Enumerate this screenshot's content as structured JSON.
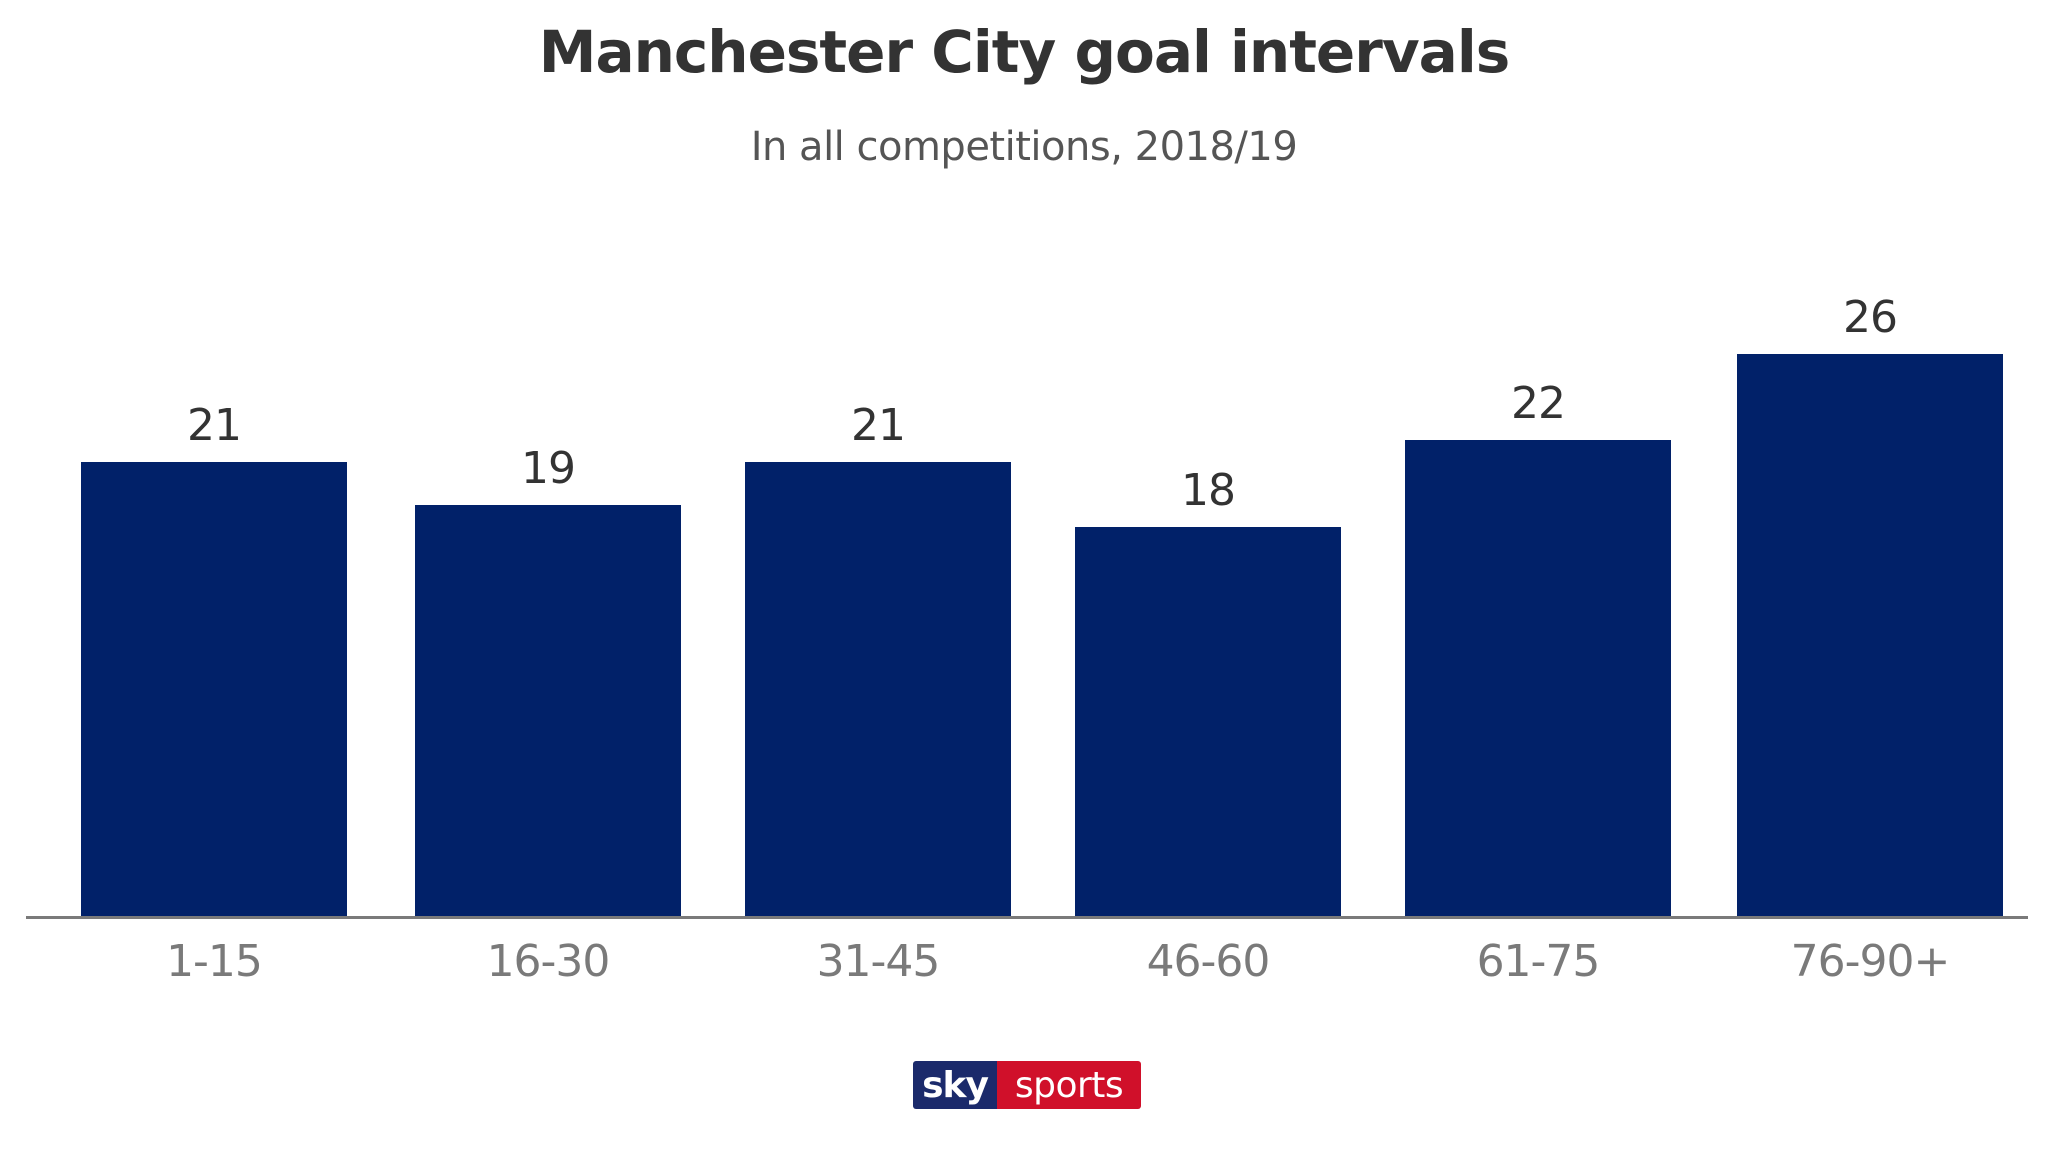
{
  "header": {
    "title": "Manchester City goal intervals",
    "subtitle": "In all competitions, 2018/19"
  },
  "logo": {
    "part1": "sky",
    "part2": "sports"
  },
  "colors": {
    "bar": "#012169",
    "axis": "#7a7a7a",
    "logo_blue": "#1b2a6b",
    "logo_red": "#d0102a"
  },
  "chart_data": {
    "type": "bar",
    "title": "Manchester City goal intervals",
    "subtitle": "In all competitions, 2018/19",
    "categories": [
      "1-15",
      "16-30",
      "31-45",
      "46-60",
      "61-75",
      "76-90+"
    ],
    "values": [
      21,
      19,
      21,
      18,
      22,
      26
    ],
    "xlabel": "",
    "ylabel": "",
    "ylim": [
      0,
      26
    ],
    "grid": false,
    "legend": null,
    "data_labels": true
  }
}
